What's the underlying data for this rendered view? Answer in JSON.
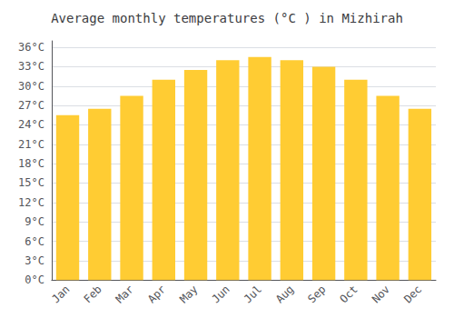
{
  "chart_data": {
    "type": "bar",
    "title": "Average monthly temperatures (°C ) in Mizhirah",
    "categories": [
      "Jan",
      "Feb",
      "Mar",
      "Apr",
      "May",
      "Jun",
      "Jul",
      "Aug",
      "Sep",
      "Oct",
      "Nov",
      "Dec"
    ],
    "values": [
      25.5,
      26.5,
      28.5,
      31.0,
      32.5,
      34.0,
      34.5,
      34.0,
      33.0,
      31.0,
      28.5,
      26.5
    ],
    "color": "#FFCC33",
    "ylim": [
      0,
      37
    ],
    "yticks": [
      {
        "value": 0,
        "label": "0°C"
      },
      {
        "value": 3,
        "label": "3°C"
      },
      {
        "value": 6,
        "label": "6°C"
      },
      {
        "value": 9,
        "label": "9°C"
      },
      {
        "value": 12,
        "label": "12°C"
      },
      {
        "value": 15,
        "label": "15°C"
      },
      {
        "value": 18,
        "label": "18°C"
      },
      {
        "value": 21,
        "label": "21°C"
      },
      {
        "value": 24,
        "label": "24°C"
      },
      {
        "value": 27,
        "label": "27°C"
      },
      {
        "value": 30,
        "label": "30°C"
      },
      {
        "value": 33,
        "label": "33°C"
      },
      {
        "value": 36,
        "label": "36°C"
      }
    ],
    "grid": true
  }
}
